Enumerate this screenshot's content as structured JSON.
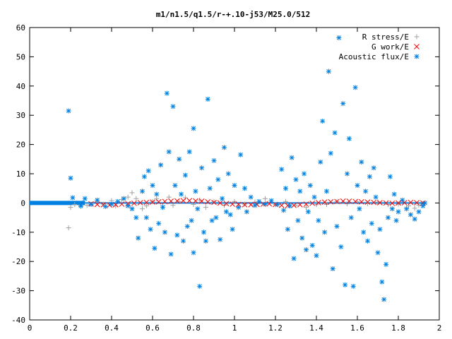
{
  "chart_data": {
    "type": "scatter",
    "title": "m1/n1.5/q1.5/r-+.10-j53/M25.0/512",
    "xlabel": "",
    "ylabel": "",
    "xlim": [
      0,
      2
    ],
    "ylim": [
      -40,
      60
    ],
    "x_ticks": [
      "0",
      "0.2",
      "0.4",
      "0.6",
      "0.8",
      "1",
      "1.2",
      "1.4",
      "1.6",
      "1.8",
      "2"
    ],
    "y_ticks": [
      "60",
      "50",
      "40",
      "30",
      "20",
      "10",
      "0",
      "-10",
      "-20",
      "-30",
      "-40"
    ],
    "grid": false,
    "legend_position": "top-right",
    "series": [
      {
        "name": "R stress/E",
        "marker": "plus",
        "color": "#a0a0a0",
        "points": [
          [
            0.19,
            -8.5
          ],
          [
            0.2,
            -1.5
          ],
          [
            0.22,
            -0.5
          ],
          [
            0.25,
            -1.2
          ],
          [
            0.28,
            -0.8
          ],
          [
            0.3,
            -0.5
          ],
          [
            0.33,
            0.5
          ],
          [
            0.36,
            -0.4
          ],
          [
            0.4,
            0.8
          ],
          [
            0.42,
            -1.0
          ],
          [
            0.45,
            1.2
          ],
          [
            0.48,
            2.0
          ],
          [
            0.5,
            3.5
          ],
          [
            0.52,
            1.5
          ],
          [
            0.55,
            -2.0
          ],
          [
            0.57,
            -1.0
          ],
          [
            0.6,
            0.5
          ],
          [
            0.62,
            1.5
          ],
          [
            0.65,
            -1.0
          ],
          [
            0.68,
            2.0
          ],
          [
            0.7,
            -0.8
          ],
          [
            0.73,
            0.5
          ],
          [
            0.76,
            1.8
          ],
          [
            0.8,
            -0.5
          ],
          [
            0.83,
            1.0
          ],
          [
            0.86,
            -1.5
          ],
          [
            0.9,
            0.5
          ],
          [
            0.95,
            -0.8
          ],
          [
            1.0,
            0.5
          ],
          [
            1.05,
            -0.4
          ],
          [
            1.1,
            0.3
          ],
          [
            1.15,
            1.5
          ],
          [
            1.2,
            -0.5
          ],
          [
            1.25,
            0.5
          ],
          [
            1.3,
            -0.8
          ],
          [
            1.35,
            -1.5
          ],
          [
            1.4,
            -0.6
          ],
          [
            1.45,
            -0.5
          ],
          [
            1.5,
            0.5
          ],
          [
            1.55,
            -0.3
          ],
          [
            1.6,
            0.4
          ],
          [
            1.65,
            -0.2
          ],
          [
            1.7,
            0.3
          ],
          [
            1.75,
            -0.5
          ],
          [
            1.8,
            -0.4
          ],
          [
            1.85,
            -1.0
          ],
          [
            1.88,
            -1.8
          ],
          [
            1.9,
            -0.8
          ],
          [
            1.92,
            -0.3
          ]
        ]
      },
      {
        "name": "G work/E",
        "marker": "cross",
        "color": "#ff0000",
        "points": [
          [
            0.3,
            -0.3
          ],
          [
            0.33,
            -0.5
          ],
          [
            0.36,
            -0.6
          ],
          [
            0.39,
            -0.7
          ],
          [
            0.42,
            -0.6
          ],
          [
            0.45,
            -0.4
          ],
          [
            0.48,
            -0.3
          ],
          [
            0.51,
            -0.1
          ],
          [
            0.54,
            0.1
          ],
          [
            0.57,
            0.2
          ],
          [
            0.6,
            0.3
          ],
          [
            0.63,
            0.4
          ],
          [
            0.66,
            0.5
          ],
          [
            0.69,
            0.6
          ],
          [
            0.72,
            0.7
          ],
          [
            0.75,
            0.8
          ],
          [
            0.78,
            0.8
          ],
          [
            0.81,
            0.7
          ],
          [
            0.84,
            0.6
          ],
          [
            0.87,
            0.4
          ],
          [
            0.9,
            0.2
          ],
          [
            0.93,
            0.0
          ],
          [
            0.96,
            -0.2
          ],
          [
            0.99,
            -0.4
          ],
          [
            1.02,
            -0.5
          ],
          [
            1.05,
            -0.6
          ],
          [
            1.08,
            -0.6
          ],
          [
            1.11,
            -0.5
          ],
          [
            1.14,
            -0.4
          ],
          [
            1.17,
            -0.3
          ],
          [
            1.2,
            -0.5
          ],
          [
            1.23,
            -0.8
          ],
          [
            1.26,
            -0.9
          ],
          [
            1.29,
            -0.8
          ],
          [
            1.32,
            -0.6
          ],
          [
            1.35,
            -0.4
          ],
          [
            1.38,
            -0.1
          ],
          [
            1.41,
            0.1
          ],
          [
            1.44,
            0.3
          ],
          [
            1.47,
            0.4
          ],
          [
            1.5,
            0.5
          ],
          [
            1.53,
            0.6
          ],
          [
            1.56,
            0.6
          ],
          [
            1.59,
            0.5
          ],
          [
            1.62,
            0.4
          ],
          [
            1.65,
            0.3
          ],
          [
            1.68,
            0.2
          ],
          [
            1.71,
            0.1
          ],
          [
            1.74,
            0.0
          ],
          [
            1.77,
            -0.1
          ],
          [
            1.8,
            0.0
          ],
          [
            1.83,
            0.1
          ],
          [
            1.86,
            0.2
          ],
          [
            1.89,
            0.1
          ],
          [
            1.92,
            0.0
          ]
        ]
      },
      {
        "name": "Acoustic flux/E",
        "marker": "star",
        "color": "#0080e0",
        "points": [
          [
            0.19,
            31.5
          ],
          [
            0.2,
            8.5
          ],
          [
            0.21,
            1.8
          ],
          [
            0.25,
            -1.0
          ],
          [
            0.27,
            1.5
          ],
          [
            0.3,
            -0.5
          ],
          [
            0.33,
            1.0
          ],
          [
            0.37,
            -1.2
          ],
          [
            0.4,
            -0.4
          ],
          [
            0.43,
            0.5
          ],
          [
            0.46,
            1.5
          ],
          [
            0.48,
            -1.0
          ],
          [
            0.5,
            -2.0
          ],
          [
            0.52,
            -5.0
          ],
          [
            0.53,
            -12.0
          ],
          [
            0.55,
            4.0
          ],
          [
            0.56,
            9.0
          ],
          [
            0.57,
            -5.0
          ],
          [
            0.58,
            11.0
          ],
          [
            0.59,
            -9.0
          ],
          [
            0.6,
            6.0
          ],
          [
            0.61,
            -15.5
          ],
          [
            0.62,
            3.0
          ],
          [
            0.63,
            -7.0
          ],
          [
            0.64,
            13.0
          ],
          [
            0.65,
            -1.5
          ],
          [
            0.66,
            -10.0
          ],
          [
            0.67,
            37.5
          ],
          [
            0.68,
            17.5
          ],
          [
            0.69,
            -17.5
          ],
          [
            0.7,
            33.0
          ],
          [
            0.71,
            6.0
          ],
          [
            0.72,
            -11.0
          ],
          [
            0.73,
            15.0
          ],
          [
            0.74,
            3.0
          ],
          [
            0.75,
            -13.0
          ],
          [
            0.76,
            9.5
          ],
          [
            0.77,
            -8.0
          ],
          [
            0.78,
            17.5
          ],
          [
            0.79,
            -6.0
          ],
          [
            0.8,
            25.5
          ],
          [
            0.8,
            -17.0
          ],
          [
            0.81,
            4.0
          ],
          [
            0.82,
            -2.0
          ],
          [
            0.83,
            -28.5
          ],
          [
            0.84,
            12.0
          ],
          [
            0.85,
            -10.0
          ],
          [
            0.86,
            -13.0
          ],
          [
            0.87,
            35.5
          ],
          [
            0.88,
            5.0
          ],
          [
            0.89,
            -6.0
          ],
          [
            0.9,
            14.5
          ],
          [
            0.91,
            -5.0
          ],
          [
            0.92,
            8.0
          ],
          [
            0.93,
            -12.5
          ],
          [
            0.94,
            1.5
          ],
          [
            0.95,
            19.0
          ],
          [
            0.96,
            -3.0
          ],
          [
            0.97,
            10.0
          ],
          [
            0.98,
            -4.0
          ],
          [
            0.99,
            -9.0
          ],
          [
            1.0,
            6.0
          ],
          [
            1.02,
            -1.5
          ],
          [
            1.03,
            16.5
          ],
          [
            1.05,
            5.0
          ],
          [
            1.06,
            -3.0
          ],
          [
            1.08,
            2.0
          ],
          [
            1.1,
            -0.8
          ],
          [
            1.12,
            0.5
          ],
          [
            1.15,
            -0.4
          ],
          [
            1.18,
            0.8
          ],
          [
            1.21,
            -0.5
          ],
          [
            1.23,
            11.5
          ],
          [
            1.24,
            -2.5
          ],
          [
            1.25,
            5.0
          ],
          [
            1.26,
            -9.0
          ],
          [
            1.27,
            -1.0
          ],
          [
            1.28,
            15.5
          ],
          [
            1.29,
            -19.0
          ],
          [
            1.3,
            8.0
          ],
          [
            1.31,
            -6.0
          ],
          [
            1.32,
            4.0
          ],
          [
            1.33,
            -12.0
          ],
          [
            1.34,
            10.0
          ],
          [
            1.35,
            -16.0
          ],
          [
            1.36,
            -3.0
          ],
          [
            1.37,
            6.0
          ],
          [
            1.38,
            -14.5
          ],
          [
            1.39,
            2.0
          ],
          [
            1.4,
            -18.0
          ],
          [
            1.41,
            -6.0
          ],
          [
            1.42,
            14.0
          ],
          [
            1.43,
            28.0
          ],
          [
            1.44,
            -10.0
          ],
          [
            1.45,
            4.0
          ],
          [
            1.46,
            45.0
          ],
          [
            1.47,
            17.0
          ],
          [
            1.48,
            -22.5
          ],
          [
            1.49,
            24.0
          ],
          [
            1.5,
            -8.0
          ],
          [
            1.51,
            56.5
          ],
          [
            1.52,
            -15.0
          ],
          [
            1.53,
            34.0
          ],
          [
            1.54,
            -28.0
          ],
          [
            1.55,
            10.0
          ],
          [
            1.56,
            22.0
          ],
          [
            1.57,
            -5.0
          ],
          [
            1.58,
            -28.5
          ],
          [
            1.59,
            39.5
          ],
          [
            1.6,
            6.0
          ],
          [
            1.61,
            -2.0
          ],
          [
            1.62,
            14.0
          ],
          [
            1.63,
            -10.0
          ],
          [
            1.64,
            4.0
          ],
          [
            1.65,
            -13.0
          ],
          [
            1.66,
            9.0
          ],
          [
            1.67,
            -7.0
          ],
          [
            1.68,
            12.0
          ],
          [
            1.69,
            2.0
          ],
          [
            1.7,
            -17.0
          ],
          [
            1.71,
            -9.0
          ],
          [
            1.72,
            -27.0
          ],
          [
            1.73,
            -33.0
          ],
          [
            1.74,
            -21.0
          ],
          [
            1.75,
            -5.0
          ],
          [
            1.76,
            9.0
          ],
          [
            1.77,
            -2.0
          ],
          [
            1.78,
            3.0
          ],
          [
            1.79,
            -6.0
          ],
          [
            1.8,
            -3.0
          ],
          [
            1.82,
            1.0
          ],
          [
            1.84,
            -2.0
          ],
          [
            1.86,
            -4.0
          ],
          [
            1.88,
            -5.5
          ],
          [
            1.9,
            -3.0
          ],
          [
            1.92,
            -1.0
          ],
          [
            1.93,
            0.0
          ]
        ]
      }
    ]
  }
}
